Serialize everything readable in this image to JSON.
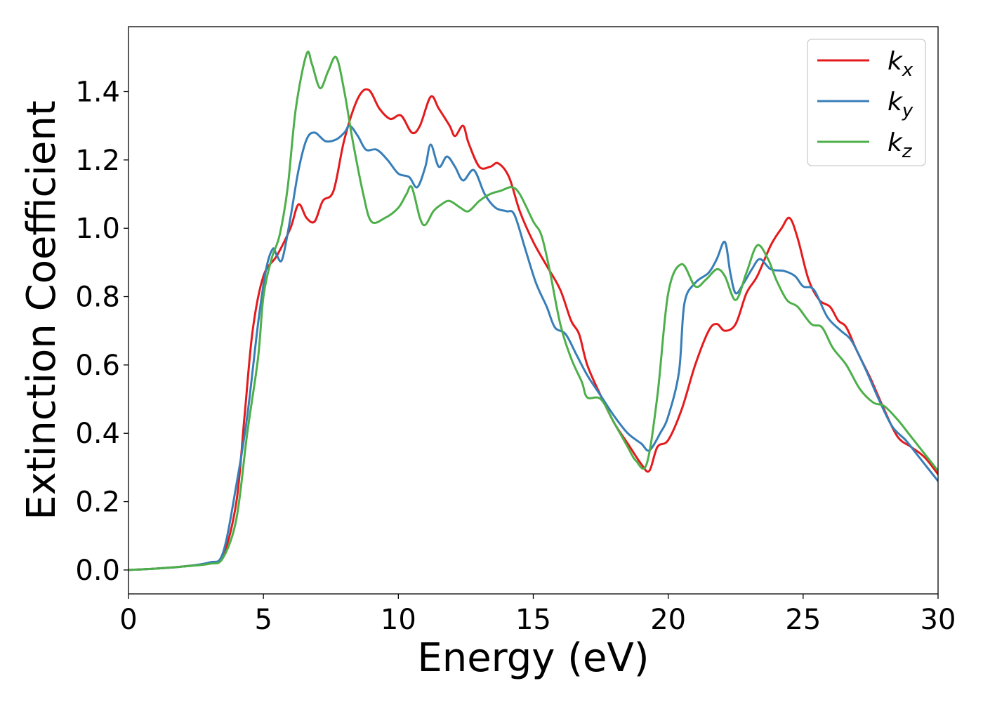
{
  "chart_data": {
    "type": "line",
    "xlabel": "Energy (eV)",
    "ylabel": "Extinction Coefficient",
    "xlim": [
      0,
      30
    ],
    "ylim": [
      -0.07,
      1.59
    ],
    "xticks": [
      "0",
      "5",
      "10",
      "15",
      "20",
      "25",
      "30"
    ],
    "yticks": [
      "0.0",
      "0.2",
      "0.4",
      "0.6",
      "0.8",
      "1.0",
      "1.2",
      "1.4"
    ],
    "grid": false,
    "legend_position": "top-right",
    "series": [
      {
        "name": "k",
        "subscript": "x",
        "color": "#e41a1c",
        "points": [
          [
            0,
            0
          ],
          [
            1,
            0.004
          ],
          [
            2,
            0.01
          ],
          [
            3,
            0.02
          ],
          [
            3.5,
            0.04
          ],
          [
            4,
            0.2
          ],
          [
            4.3,
            0.45
          ],
          [
            4.6,
            0.7
          ],
          [
            5,
            0.86
          ],
          [
            5.5,
            0.92
          ],
          [
            6,
            1.0
          ],
          [
            6.3,
            1.07
          ],
          [
            6.6,
            1.03
          ],
          [
            6.9,
            1.02
          ],
          [
            7.2,
            1.08
          ],
          [
            7.6,
            1.11
          ],
          [
            8,
            1.26
          ],
          [
            8.5,
            1.38
          ],
          [
            8.9,
            1.405
          ],
          [
            9.3,
            1.35
          ],
          [
            9.7,
            1.32
          ],
          [
            10.1,
            1.33
          ],
          [
            10.5,
            1.28
          ],
          [
            10.8,
            1.3
          ],
          [
            11.2,
            1.385
          ],
          [
            11.5,
            1.35
          ],
          [
            11.9,
            1.3
          ],
          [
            12.1,
            1.27
          ],
          [
            12.4,
            1.3
          ],
          [
            12.6,
            1.25
          ],
          [
            13,
            1.18
          ],
          [
            13.4,
            1.18
          ],
          [
            13.7,
            1.19
          ],
          [
            14.1,
            1.15
          ],
          [
            14.5,
            1.05
          ],
          [
            15,
            0.96
          ],
          [
            15.5,
            0.89
          ],
          [
            16,
            0.82
          ],
          [
            16.4,
            0.73
          ],
          [
            16.7,
            0.69
          ],
          [
            17,
            0.6
          ],
          [
            17.5,
            0.51
          ],
          [
            18,
            0.43
          ],
          [
            18.5,
            0.37
          ],
          [
            19,
            0.31
          ],
          [
            19.3,
            0.29
          ],
          [
            19.6,
            0.36
          ],
          [
            20,
            0.38
          ],
          [
            20.5,
            0.47
          ],
          [
            21,
            0.6
          ],
          [
            21.5,
            0.7
          ],
          [
            21.8,
            0.72
          ],
          [
            22.1,
            0.7
          ],
          [
            22.5,
            0.72
          ],
          [
            22.9,
            0.81
          ],
          [
            23.3,
            0.86
          ],
          [
            23.8,
            0.95
          ],
          [
            24.2,
            1.0
          ],
          [
            24.5,
            1.03
          ],
          [
            24.8,
            0.97
          ],
          [
            25.2,
            0.85
          ],
          [
            25.6,
            0.79
          ],
          [
            26,
            0.77
          ],
          [
            26.3,
            0.73
          ],
          [
            26.6,
            0.71
          ],
          [
            27,
            0.64
          ],
          [
            27.5,
            0.56
          ],
          [
            28,
            0.47
          ],
          [
            28.5,
            0.39
          ],
          [
            29,
            0.36
          ],
          [
            29.5,
            0.33
          ],
          [
            30,
            0.28
          ]
        ]
      },
      {
        "name": "k",
        "subscript": "y",
        "color": "#377eb8",
        "points": [
          [
            0,
            0
          ],
          [
            1,
            0.004
          ],
          [
            2,
            0.01
          ],
          [
            3,
            0.022
          ],
          [
            3.5,
            0.05
          ],
          [
            4,
            0.25
          ],
          [
            4.4,
            0.45
          ],
          [
            4.8,
            0.72
          ],
          [
            5.1,
            0.88
          ],
          [
            5.35,
            0.94
          ],
          [
            5.5,
            0.92
          ],
          [
            5.7,
            0.91
          ],
          [
            6,
            1.03
          ],
          [
            6.3,
            1.17
          ],
          [
            6.6,
            1.26
          ],
          [
            6.9,
            1.28
          ],
          [
            7.3,
            1.255
          ],
          [
            7.7,
            1.26
          ],
          [
            8,
            1.28
          ],
          [
            8.2,
            1.3
          ],
          [
            8.5,
            1.27
          ],
          [
            8.8,
            1.23
          ],
          [
            9.2,
            1.23
          ],
          [
            9.6,
            1.2
          ],
          [
            10,
            1.16
          ],
          [
            10.4,
            1.15
          ],
          [
            10.7,
            1.12
          ],
          [
            11,
            1.18
          ],
          [
            11.2,
            1.245
          ],
          [
            11.5,
            1.18
          ],
          [
            11.8,
            1.21
          ],
          [
            12.1,
            1.18
          ],
          [
            12.4,
            1.14
          ],
          [
            12.8,
            1.17
          ],
          [
            13.2,
            1.1
          ],
          [
            13.6,
            1.06
          ],
          [
            14,
            1.05
          ],
          [
            14.3,
            1.04
          ],
          [
            14.7,
            0.94
          ],
          [
            15.1,
            0.84
          ],
          [
            15.5,
            0.77
          ],
          [
            15.8,
            0.71
          ],
          [
            16.2,
            0.69
          ],
          [
            16.6,
            0.63
          ],
          [
            17,
            0.57
          ],
          [
            17.5,
            0.51
          ],
          [
            18,
            0.45
          ],
          [
            18.5,
            0.4
          ],
          [
            19,
            0.37
          ],
          [
            19.3,
            0.35
          ],
          [
            19.7,
            0.4
          ],
          [
            20,
            0.45
          ],
          [
            20.4,
            0.58
          ],
          [
            20.6,
            0.78
          ],
          [
            21,
            0.84
          ],
          [
            21.5,
            0.87
          ],
          [
            21.8,
            0.91
          ],
          [
            22.1,
            0.96
          ],
          [
            22.3,
            0.87
          ],
          [
            22.5,
            0.81
          ],
          [
            22.8,
            0.84
          ],
          [
            23.1,
            0.88
          ],
          [
            23.4,
            0.91
          ],
          [
            23.8,
            0.88
          ],
          [
            24.3,
            0.875
          ],
          [
            24.7,
            0.86
          ],
          [
            25,
            0.83
          ],
          [
            25.4,
            0.82
          ],
          [
            25.9,
            0.74
          ],
          [
            26.4,
            0.7
          ],
          [
            26.8,
            0.67
          ],
          [
            27.3,
            0.59
          ],
          [
            27.8,
            0.5
          ],
          [
            28.3,
            0.42
          ],
          [
            28.8,
            0.38
          ],
          [
            29.2,
            0.34
          ],
          [
            29.6,
            0.3
          ],
          [
            30,
            0.26
          ]
        ]
      },
      {
        "name": "k",
        "subscript": "z",
        "color": "#4daf4a",
        "points": [
          [
            0,
            0
          ],
          [
            1,
            0.004
          ],
          [
            2,
            0.01
          ],
          [
            3,
            0.018
          ],
          [
            3.5,
            0.035
          ],
          [
            4,
            0.15
          ],
          [
            4.4,
            0.4
          ],
          [
            4.8,
            0.62
          ],
          [
            5,
            0.8
          ],
          [
            5.3,
            0.91
          ],
          [
            5.6,
            0.98
          ],
          [
            5.9,
            1.12
          ],
          [
            6.2,
            1.35
          ],
          [
            6.6,
            1.51
          ],
          [
            6.8,
            1.48
          ],
          [
            7.1,
            1.41
          ],
          [
            7.4,
            1.46
          ],
          [
            7.7,
            1.5
          ],
          [
            8,
            1.4
          ],
          [
            8.3,
            1.26
          ],
          [
            8.7,
            1.1
          ],
          [
            9,
            1.02
          ],
          [
            9.5,
            1.03
          ],
          [
            10,
            1.06
          ],
          [
            10.3,
            1.1
          ],
          [
            10.5,
            1.12
          ],
          [
            10.8,
            1.03
          ],
          [
            11,
            1.01
          ],
          [
            11.3,
            1.05
          ],
          [
            11.6,
            1.07
          ],
          [
            11.9,
            1.08
          ],
          [
            12.3,
            1.06
          ],
          [
            12.6,
            1.05
          ],
          [
            13,
            1.08
          ],
          [
            13.4,
            1.1
          ],
          [
            13.8,
            1.11
          ],
          [
            14.2,
            1.12
          ],
          [
            14.5,
            1.1
          ],
          [
            15,
            1.02
          ],
          [
            15.3,
            0.98
          ],
          [
            15.6,
            0.88
          ],
          [
            16,
            0.72
          ],
          [
            16.4,
            0.62
          ],
          [
            16.8,
            0.55
          ],
          [
            17,
            0.505
          ],
          [
            17.5,
            0.5
          ],
          [
            18,
            0.43
          ],
          [
            18.5,
            0.36
          ],
          [
            18.8,
            0.32
          ],
          [
            19.2,
            0.31
          ],
          [
            19.6,
            0.51
          ],
          [
            20,
            0.81
          ],
          [
            20.5,
            0.895
          ],
          [
            21,
            0.83
          ],
          [
            21.4,
            0.85
          ],
          [
            21.8,
            0.88
          ],
          [
            22.1,
            0.86
          ],
          [
            22.5,
            0.79
          ],
          [
            22.9,
            0.87
          ],
          [
            23.3,
            0.95
          ],
          [
            23.7,
            0.91
          ],
          [
            24,
            0.85
          ],
          [
            24.4,
            0.79
          ],
          [
            24.8,
            0.77
          ],
          [
            25.3,
            0.72
          ],
          [
            25.7,
            0.71
          ],
          [
            26.1,
            0.65
          ],
          [
            26.6,
            0.6
          ],
          [
            27.1,
            0.53
          ],
          [
            27.6,
            0.49
          ],
          [
            28,
            0.48
          ],
          [
            28.5,
            0.44
          ],
          [
            29,
            0.39
          ],
          [
            29.5,
            0.34
          ],
          [
            30,
            0.29
          ]
        ]
      }
    ]
  }
}
